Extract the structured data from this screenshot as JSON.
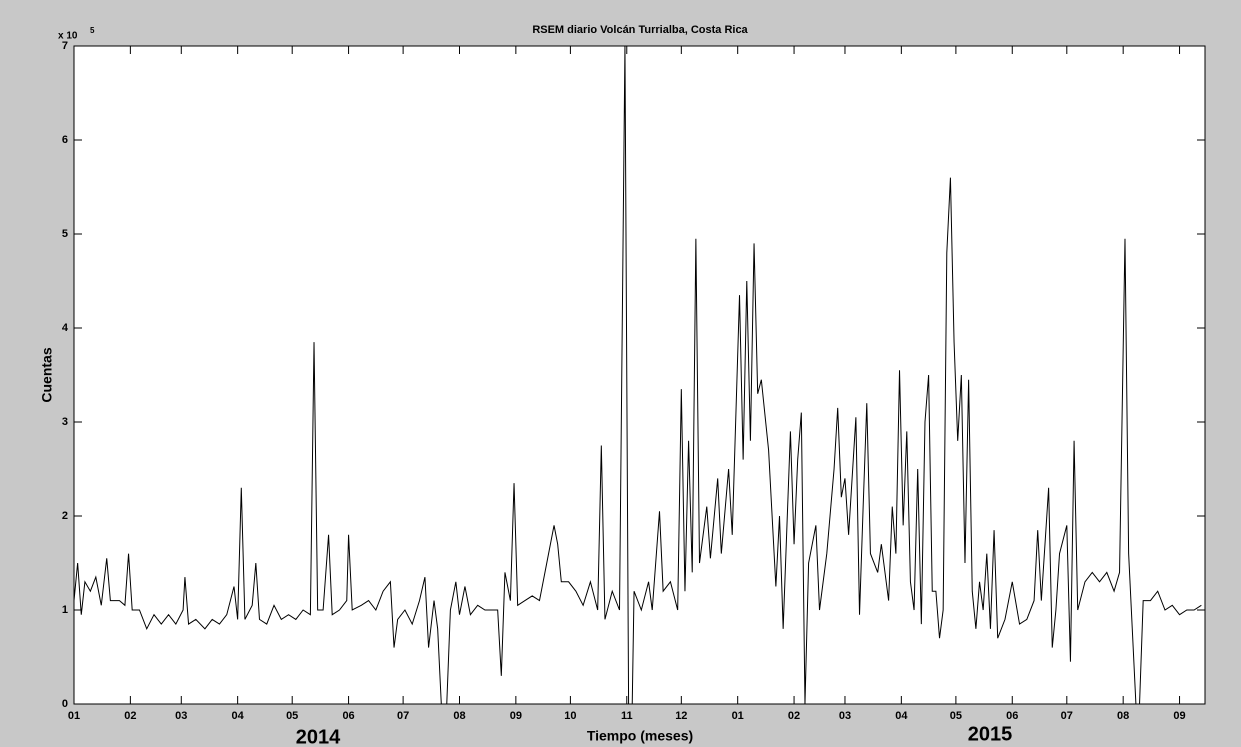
{
  "chart_data": {
    "type": "line",
    "title": "RSEM diario Volcán Turrialba, Costa Rica",
    "x_label": "Tiempo (meses)",
    "y_label": "Cuentas",
    "y_multiplier": "x 10",
    "y_exponent": "5",
    "annotations": [
      "2014",
      "2015"
    ],
    "xlim": [
      0,
      622
    ],
    "ylim": [
      0,
      700000
    ],
    "xticks": [
      {
        "value": 0,
        "label": "01"
      },
      {
        "value": 31,
        "label": "02"
      },
      {
        "value": 59,
        "label": "03"
      },
      {
        "value": 90,
        "label": "04"
      },
      {
        "value": 120,
        "label": "05"
      },
      {
        "value": 151,
        "label": "06"
      },
      {
        "value": 181,
        "label": "07"
      },
      {
        "value": 212,
        "label": "08"
      },
      {
        "value": 243,
        "label": "09"
      },
      {
        "value": 273,
        "label": "10"
      },
      {
        "value": 304,
        "label": "11"
      },
      {
        "value": 334,
        "label": "12"
      },
      {
        "value": 365,
        "label": "01"
      },
      {
        "value": 396,
        "label": "02"
      },
      {
        "value": 424,
        "label": "03"
      },
      {
        "value": 455,
        "label": "04"
      },
      {
        "value": 485,
        "label": "05"
      },
      {
        "value": 516,
        "label": "06"
      },
      {
        "value": 546,
        "label": "07"
      },
      {
        "value": 577,
        "label": "08"
      },
      {
        "value": 608,
        "label": "09"
      }
    ],
    "yticks": [
      0,
      {
        "value": 100000,
        "label": "1"
      },
      {
        "value": 200000,
        "label": "2"
      },
      {
        "value": 300000,
        "label": "3"
      },
      {
        "value": 400000,
        "label": "4"
      },
      {
        "value": 500000,
        "label": "5"
      },
      {
        "value": 600000,
        "label": "6"
      },
      {
        "value": 700000,
        "label": "7"
      }
    ],
    "grid": false,
    "x": [
      0,
      2,
      4,
      6,
      9,
      12,
      15,
      18,
      20,
      25,
      28,
      30,
      32,
      36,
      40,
      44,
      48,
      52,
      56,
      60,
      61,
      63,
      67,
      72,
      76,
      80,
      84,
      88,
      90,
      92,
      94,
      98,
      100,
      102,
      106,
      110,
      114,
      118,
      122,
      126,
      130,
      132,
      134,
      137,
      140,
      142,
      146,
      150,
      151,
      153,
      158,
      162,
      166,
      170,
      174,
      176,
      178,
      182,
      186,
      190,
      193,
      195,
      198,
      200,
      202,
      205,
      207,
      210,
      212,
      215,
      218,
      222,
      226,
      230,
      233,
      235,
      237,
      240,
      242,
      244,
      248,
      252,
      256,
      260,
      264,
      266,
      268,
      272,
      276,
      280,
      284,
      288,
      290,
      292,
      296,
      300,
      303,
      305,
      307,
      308,
      312,
      316,
      318,
      322,
      324,
      328,
      332,
      334,
      336,
      338,
      340,
      342,
      344,
      348,
      350,
      354,
      356,
      360,
      362,
      366,
      368,
      370,
      372,
      374,
      376,
      378,
      382,
      386,
      388,
      390,
      394,
      396,
      398,
      400,
      402,
      404,
      408,
      410,
      414,
      418,
      420,
      422,
      424,
      426,
      430,
      432,
      434,
      436,
      438,
      442,
      444,
      448,
      450,
      452,
      454,
      456,
      458,
      460,
      462,
      464,
      466,
      468,
      470,
      472,
      474,
      476,
      478,
      480,
      482,
      484,
      486,
      488,
      490,
      492,
      494,
      496,
      498,
      500,
      502,
      504,
      506,
      508,
      512,
      516,
      520,
      524,
      528,
      530,
      532,
      536,
      538,
      540,
      542,
      546,
      548,
      550,
      552,
      556,
      560,
      564,
      568,
      572,
      575,
      578,
      580,
      582,
      584,
      586,
      588,
      592,
      596,
      600,
      604,
      608,
      612,
      616,
      620
    ],
    "series": [
      {
        "color": "#000000",
        "values": [
          110000,
          150000,
          95000,
          130000,
          120000,
          135000,
          105000,
          155000,
          110000,
          110000,
          105000,
          160000,
          100000,
          100000,
          80000,
          95000,
          85000,
          95000,
          85000,
          100000,
          135000,
          85000,
          90000,
          80000,
          90000,
          85000,
          95000,
          125000,
          90000,
          230000,
          90000,
          105000,
          150000,
          90000,
          85000,
          105000,
          90000,
          95000,
          90000,
          100000,
          95000,
          385000,
          100000,
          100000,
          180000,
          95000,
          100000,
          110000,
          180000,
          100000,
          105000,
          110000,
          100000,
          120000,
          130000,
          60000,
          90000,
          100000,
          85000,
          110000,
          135000,
          60000,
          110000,
          80000,
          0,
          0,
          100000,
          130000,
          95000,
          125000,
          95000,
          105000,
          100000,
          100000,
          100000,
          30000,
          140000,
          110000,
          235000,
          105000,
          110000,
          115000,
          110000,
          150000,
          190000,
          170000,
          130000,
          130000,
          120000,
          105000,
          130000,
          100000,
          275000,
          90000,
          120000,
          100000,
          700000,
          0,
          0,
          120000,
          100000,
          130000,
          100000,
          205000,
          120000,
          130000,
          100000,
          335000,
          120000,
          280000,
          140000,
          495000,
          150000,
          210000,
          155000,
          240000,
          160000,
          250000,
          180000,
          435000,
          260000,
          450000,
          280000,
          490000,
          330000,
          345000,
          270000,
          125000,
          200000,
          80000,
          290000,
          170000,
          260000,
          310000,
          0,
          150000,
          190000,
          100000,
          160000,
          250000,
          315000,
          220000,
          240000,
          180000,
          305000,
          95000,
          210000,
          320000,
          160000,
          140000,
          170000,
          110000,
          210000,
          160000,
          355000,
          190000,
          290000,
          130000,
          100000,
          250000,
          85000,
          300000,
          350000,
          120000,
          120000,
          70000,
          100000,
          480000,
          560000,
          385000,
          280000,
          350000,
          150000,
          345000,
          120000,
          80000,
          130000,
          100000,
          160000,
          80000,
          185000,
          70000,
          90000,
          130000,
          85000,
          90000,
          110000,
          185000,
          110000,
          230000,
          60000,
          100000,
          160000,
          190000,
          45000,
          280000,
          100000,
          130000,
          140000,
          130000,
          140000,
          120000,
          140000,
          495000,
          160000,
          80000,
          0,
          0,
          110000,
          110000,
          120000,
          100000,
          105000,
          95000,
          100000,
          100000,
          105000
        ]
      }
    ]
  }
}
